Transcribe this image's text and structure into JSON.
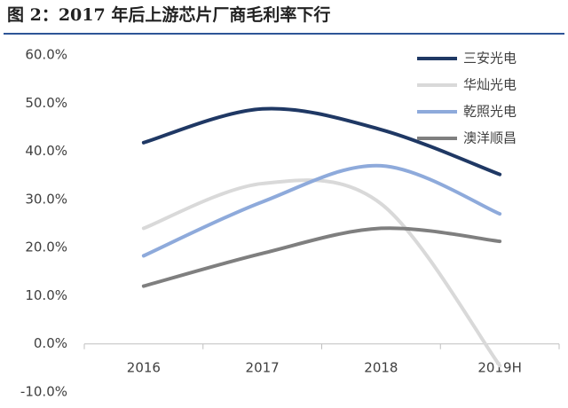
{
  "chart_data": {
    "type": "line",
    "title": "图 2：2017 年后上游芯片厂商毛利率下行",
    "categories": [
      "2016",
      "2017",
      "2018",
      "2019H"
    ],
    "series": [
      {
        "name": "三安光电",
        "color": "#1f3864",
        "values": [
          41.8,
          48.8,
          44.5,
          35.2
        ]
      },
      {
        "name": "华灿光电",
        "color": "#d9d9d9",
        "values": [
          24.0,
          33.3,
          29.1,
          -4.5
        ]
      },
      {
        "name": "乾照光电",
        "color": "#8eaadb",
        "values": [
          18.3,
          29.5,
          37.0,
          27.0
        ]
      },
      {
        "name": "澳洋顺昌",
        "color": "#7f7f7f",
        "values": [
          12.0,
          18.8,
          24.0,
          21.3
        ]
      }
    ],
    "ylim": [
      -10,
      60
    ],
    "yticks": [
      {
        "value": -10,
        "label": "-10.0%"
      },
      {
        "value": 0,
        "label": "0.0%"
      },
      {
        "value": 10,
        "label": "10.0%"
      },
      {
        "value": 20,
        "label": "20.0%"
      },
      {
        "value": 30,
        "label": "30.0%"
      },
      {
        "value": 40,
        "label": "40.0%"
      },
      {
        "value": 50,
        "label": "50.0%"
      },
      {
        "value": 60,
        "label": "60.0%"
      }
    ],
    "legend": "top-right"
  }
}
